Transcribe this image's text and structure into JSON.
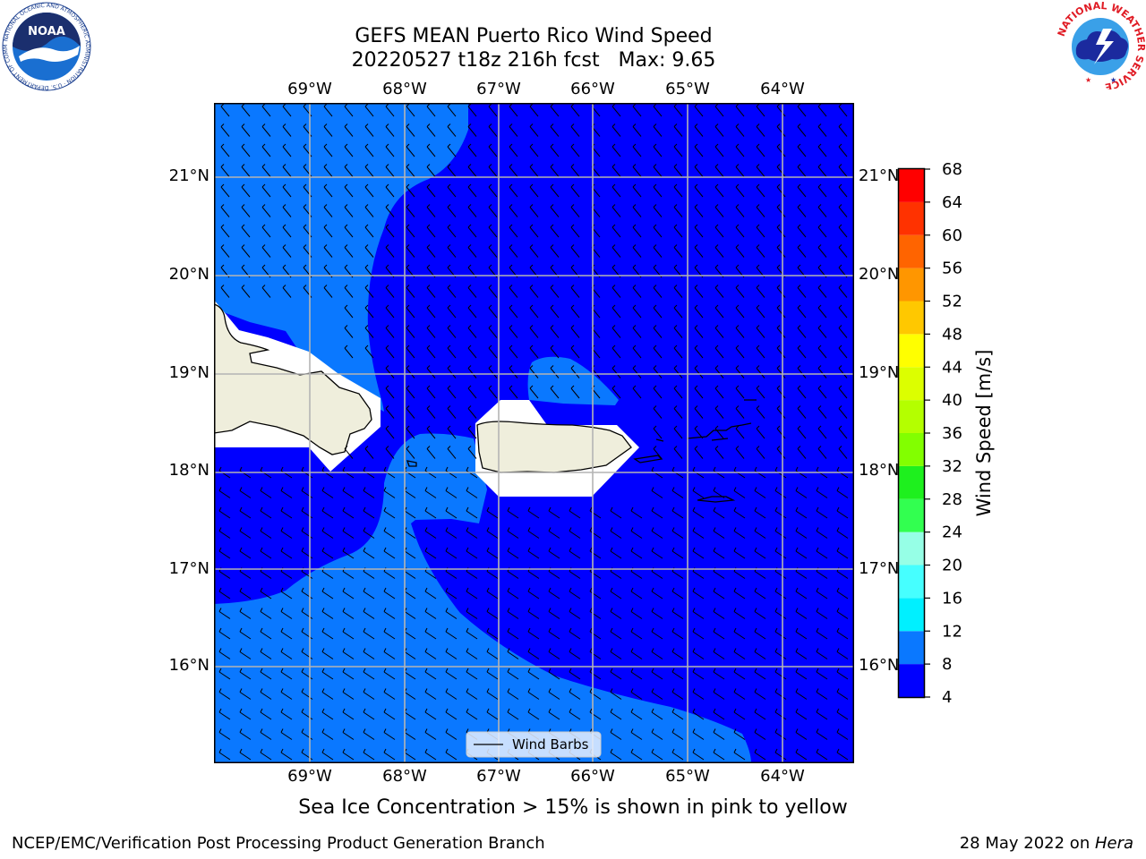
{
  "title": {
    "line1": "GEFS MEAN Puerto Rico Wind Speed",
    "line2": "20220527 t18z 216h fcst   Max: 9.65"
  },
  "subtitle": "Sea Ice Concentration > 15% is shown in pink to yellow",
  "footer": {
    "left": "NCEP/EMC/Verification Post Processing Product Generation Branch",
    "right_prefix": "28 May 2022 on ",
    "right_host": "Hera"
  },
  "logos": {
    "noaa": {
      "label": "NOAA",
      "ring_text": "NATIONAL OCEANIC AND ATMOSPHERIC ADMINISTRATION · U.S. DEPARTMENT OF COMMERCE"
    },
    "nws": {
      "ring_text": "NATIONAL WEATHER SERVICE"
    }
  },
  "map": {
    "lon_labels": [
      "69°W",
      "68°W",
      "67°W",
      "66°W",
      "65°W",
      "64°W"
    ],
    "lat_labels": [
      "21°N",
      "20°N",
      "19°N",
      "18°N",
      "17°N",
      "16°N"
    ],
    "lon_range": [
      -70.0,
      -63.25
    ],
    "lat_range": [
      15.0,
      21.75
    ],
    "legend_label": "Wind Barbs",
    "colors": {
      "speed_4_8": "#0000ff",
      "speed_8_12": "#0a78ff",
      "land": "#efeedc",
      "masked": "#ffffff",
      "grid": "#b4b4b4"
    }
  },
  "colorbar": {
    "label": "Wind Speed [m/s]",
    "ticks": [
      "68",
      "64",
      "60",
      "56",
      "52",
      "48",
      "44",
      "40",
      "36",
      "32",
      "28",
      "24",
      "20",
      "16",
      "12",
      "8",
      "4"
    ],
    "bins": [
      {
        "from": 4,
        "to": 8,
        "color": "#0000ff"
      },
      {
        "from": 8,
        "to": 12,
        "color": "#0a78ff"
      },
      {
        "from": 12,
        "to": 16,
        "color": "#00f0ff"
      },
      {
        "from": 16,
        "to": 20,
        "color": "#46ffff"
      },
      {
        "from": 20,
        "to": 24,
        "color": "#96ffe6"
      },
      {
        "from": 24,
        "to": 28,
        "color": "#32ff50"
      },
      {
        "from": 28,
        "to": 32,
        "color": "#1ef01e"
      },
      {
        "from": 32,
        "to": 36,
        "color": "#82ff00"
      },
      {
        "from": 36,
        "to": 40,
        "color": "#b4ff00"
      },
      {
        "from": 40,
        "to": 44,
        "color": "#dcff00"
      },
      {
        "from": 44,
        "to": 48,
        "color": "#ffff00"
      },
      {
        "from": 48,
        "to": 52,
        "color": "#ffc800"
      },
      {
        "from": 52,
        "to": 56,
        "color": "#ff9600"
      },
      {
        "from": 56,
        "to": 60,
        "color": "#ff6400"
      },
      {
        "from": 60,
        "to": 64,
        "color": "#ff3200"
      },
      {
        "from": 64,
        "to": 68,
        "color": "#ff0000"
      }
    ]
  }
}
